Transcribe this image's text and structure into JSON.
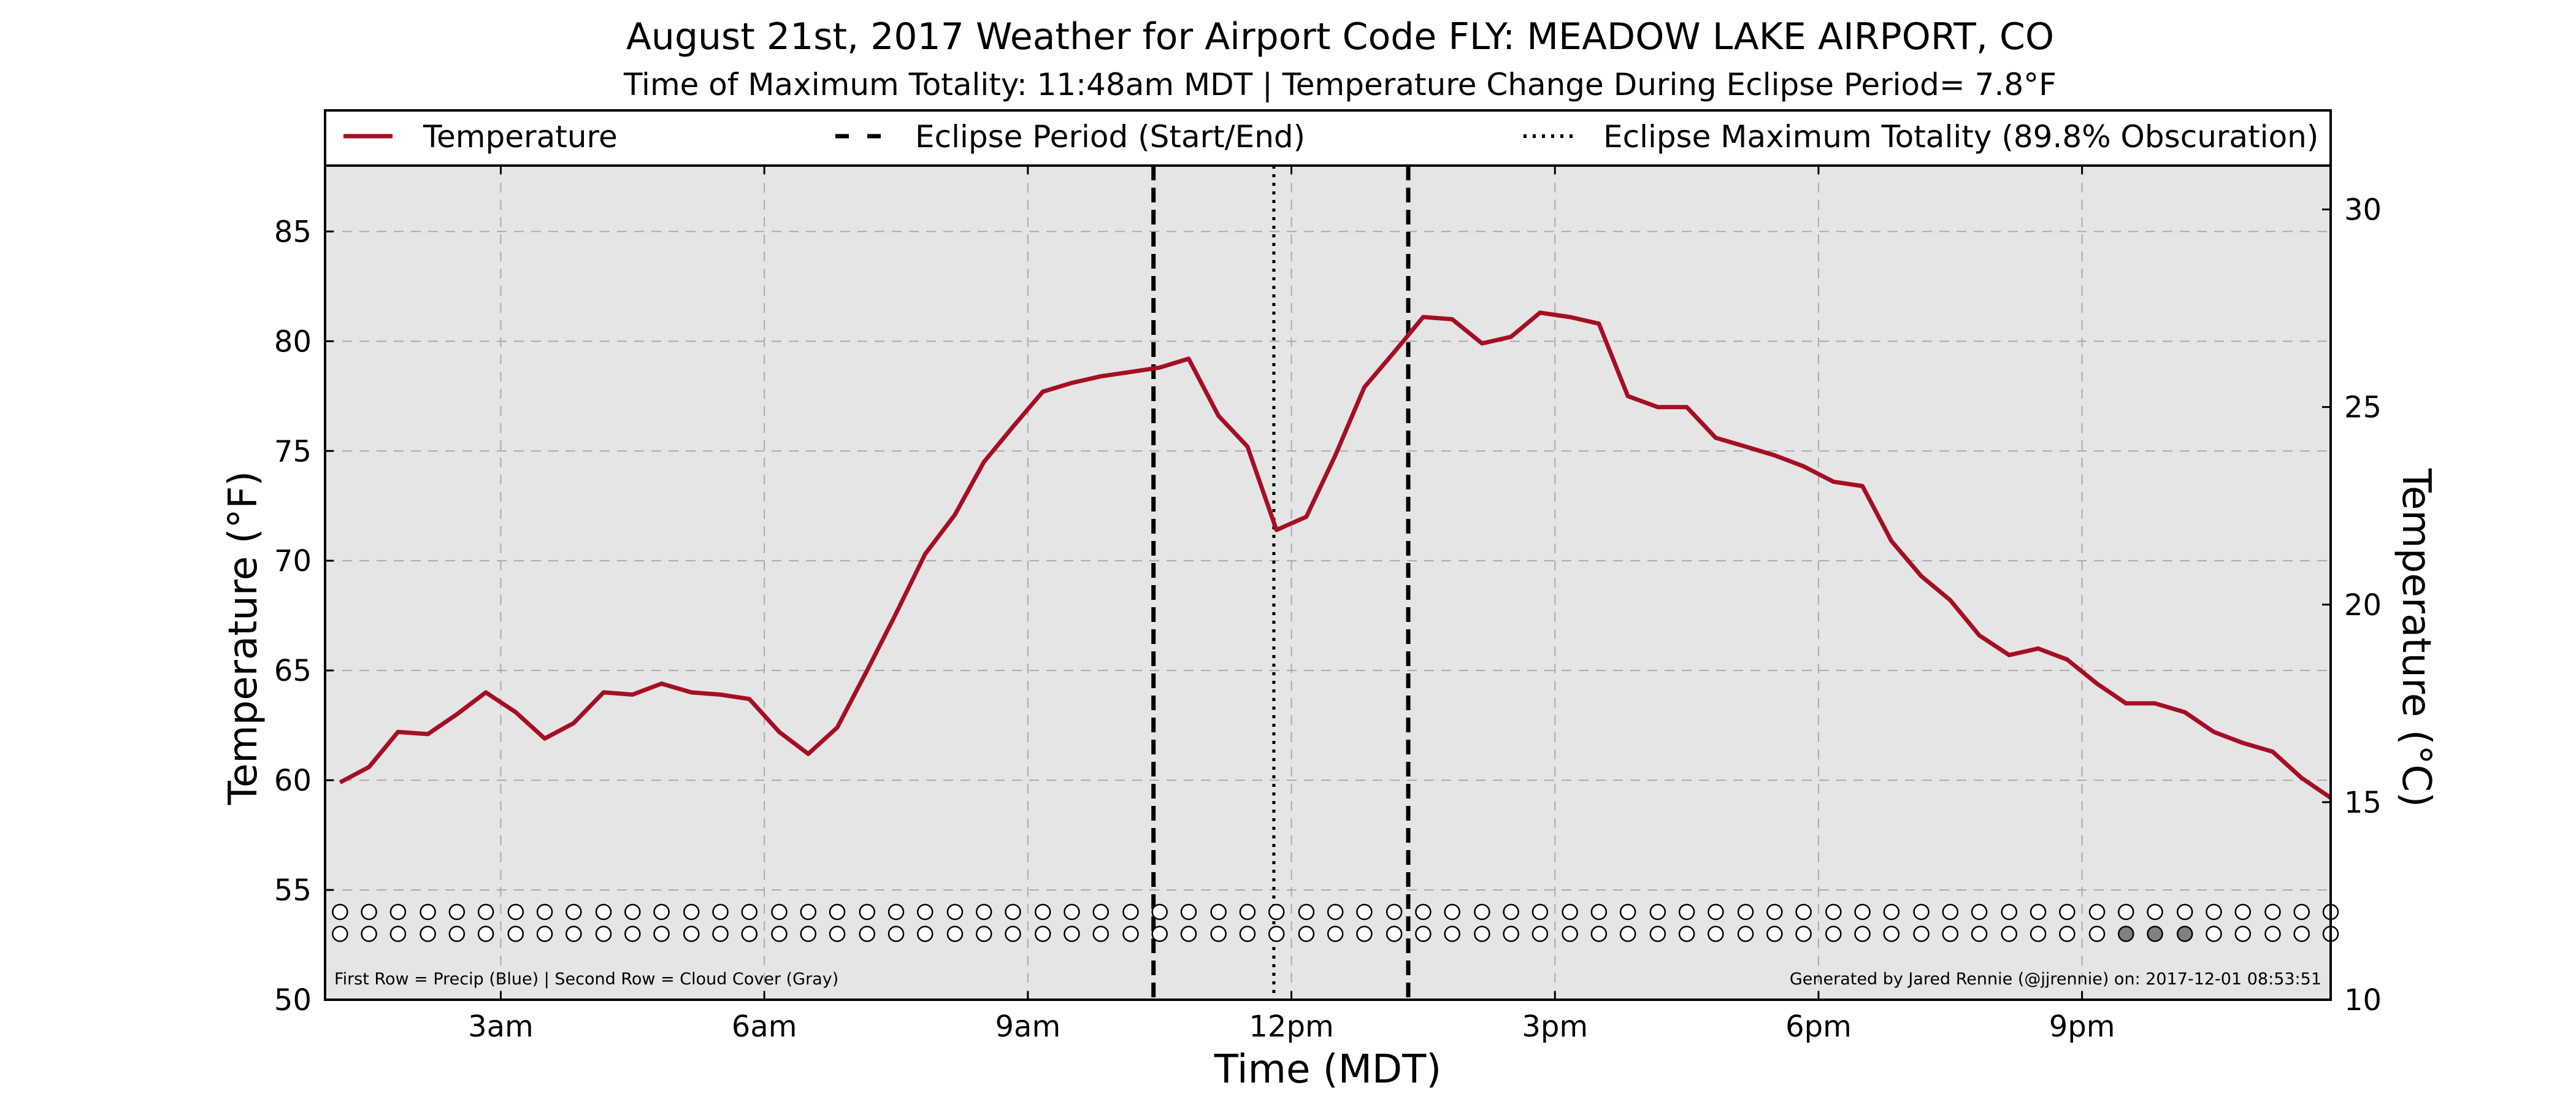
{
  "chart_data": {
    "type": "line",
    "title": "August 21st, 2017 Weather for Airport Code FLY: MEADOW LAKE AIRPORT, CO",
    "subtitle": "Time of Maximum Totality: 11:48am MDT | Temperature Change During Eclipse Period= 7.8°F",
    "xlabel": "Time (MDT)",
    "ylabel": "Temperature (°F)",
    "ylabel_right": "Temperature (°C)",
    "xlim": [
      1.0,
      23.83
    ],
    "ylim": [
      50,
      88
    ],
    "ylim_right": [
      10,
      31.11
    ],
    "x_ticks": [
      {
        "x": 3,
        "label": "3am"
      },
      {
        "x": 6,
        "label": "6am"
      },
      {
        "x": 9,
        "label": "9am"
      },
      {
        "x": 12,
        "label": "12pm"
      },
      {
        "x": 15,
        "label": "3pm"
      },
      {
        "x": 18,
        "label": "6pm"
      },
      {
        "x": 21,
        "label": "9pm"
      }
    ],
    "y_ticks": [
      50,
      55,
      60,
      65,
      70,
      75,
      80,
      85
    ],
    "y_ticks_right": [
      10,
      15,
      20,
      25,
      30
    ],
    "grid": true,
    "legend": {
      "placement": "top",
      "entries": [
        {
          "label": "Temperature",
          "style": "solid",
          "color": "#a50f24"
        },
        {
          "label": "Eclipse Period (Start/End)",
          "style": "dashed",
          "color": "#000000"
        },
        {
          "label": "Eclipse Maximum Totality (89.8% Obscuration)",
          "style": "dotted",
          "color": "#000000"
        }
      ]
    },
    "series": [
      {
        "name": "Temperature",
        "color": "#a50f24",
        "x": [
          1.17,
          1.5,
          1.83,
          2.17,
          2.5,
          2.83,
          3.17,
          3.5,
          3.83,
          4.17,
          4.5,
          4.83,
          5.17,
          5.5,
          5.83,
          6.17,
          6.5,
          6.83,
          7.17,
          7.5,
          7.83,
          8.17,
          8.5,
          8.83,
          9.17,
          9.5,
          9.83,
          10.17,
          10.5,
          10.83,
          11.17,
          11.5,
          11.83,
          12.17,
          12.5,
          12.83,
          13.17,
          13.5,
          13.83,
          14.17,
          14.5,
          14.83,
          15.17,
          15.5,
          15.83,
          16.17,
          16.5,
          16.83,
          17.17,
          17.5,
          17.83,
          18.17,
          18.5,
          18.83,
          19.17,
          19.5,
          19.83,
          20.17,
          20.5,
          20.83,
          21.17,
          21.5,
          21.83,
          22.17,
          22.5,
          22.83,
          23.17,
          23.5,
          23.83
        ],
        "values": [
          59.9,
          60.6,
          62.2,
          62.1,
          63.0,
          64.0,
          63.1,
          61.9,
          62.6,
          64.0,
          63.9,
          64.4,
          64.0,
          63.9,
          63.7,
          62.2,
          61.2,
          62.4,
          65.0,
          67.6,
          70.3,
          72.1,
          74.5,
          76.1,
          77.7,
          78.1,
          78.4,
          78.6,
          78.8,
          79.2,
          76.6,
          75.2,
          71.4,
          72.0,
          74.8,
          77.9,
          79.5,
          81.1,
          81.0,
          79.9,
          80.2,
          81.3,
          81.1,
          80.8,
          77.5,
          77.0,
          77.0,
          75.6,
          75.2,
          74.8,
          74.3,
          73.6,
          73.4,
          70.9,
          69.3,
          68.2,
          66.6,
          65.7,
          66.0,
          65.5,
          64.4,
          63.5,
          63.5,
          63.1,
          62.2,
          61.7,
          61.3,
          60.1,
          59.2
        ]
      }
    ],
    "eclipse_start": 10.43,
    "eclipse_end": 13.33,
    "eclipse_max": 11.8,
    "indicator_rows": {
      "caption": "First Row = Precip (Blue) | Second Row = Cloud Cover (Gray)",
      "row1_level": 54.0,
      "row2_level": 53.0,
      "row1_fills": [],
      "row2_fills": [
        {
          "x": 21.5,
          "color": "#808080"
        },
        {
          "x": 21.83,
          "color": "#808080"
        },
        {
          "x": 22.17,
          "color": "#808080"
        }
      ]
    },
    "credit": "Generated by Jared Rennie (@jjrennie) on: 2017-12-01 08:53:51"
  }
}
